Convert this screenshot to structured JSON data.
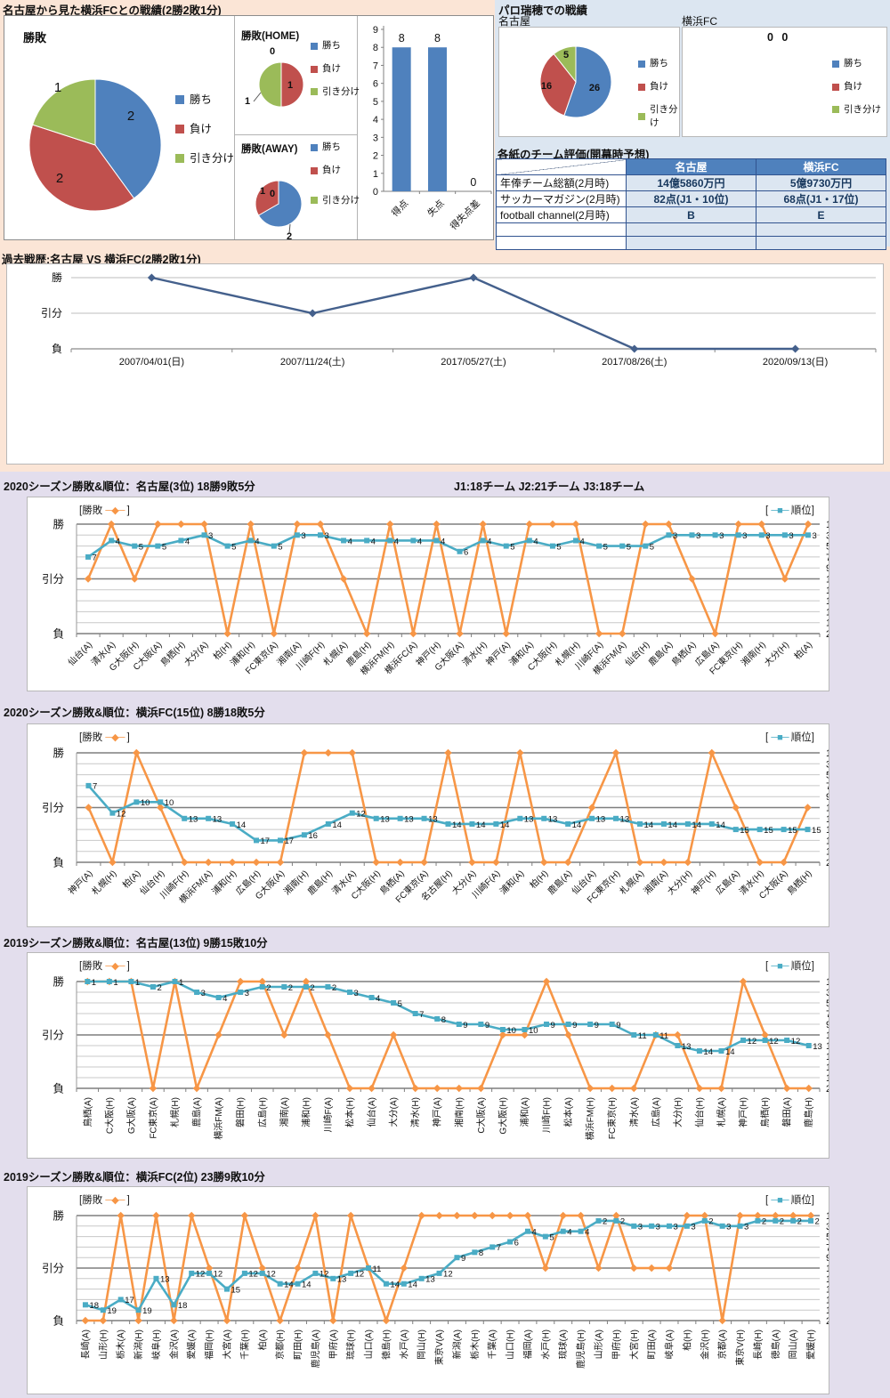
{
  "colors": {
    "win": "#4f81bd",
    "lose": "#c0504d",
    "draw": "#9bbb59",
    "result_line": "#f79646",
    "rank_line": "#4aacc5",
    "history_line": "#44608c",
    "header_blue": "#4f81bd",
    "bg_peach": "#fbe5d6",
    "bg_blue": "#dce6f1",
    "bg_lavender": "#e3deed"
  },
  "ui": {
    "bracket_l": "[",
    "bracket_r": "]",
    "marker_result": "─◆─",
    "marker_rank": "─■─",
    "result_legend": [
      "勝ち",
      "負け",
      "引き分け"
    ],
    "series_result": "勝敗",
    "series_rank": "順位",
    "result_axis": [
      "勝",
      "引分",
      "負"
    ],
    "rank_ticks": [
      1,
      3,
      5,
      7,
      9,
      11,
      13,
      15,
      17,
      19,
      21
    ]
  },
  "h2h": {
    "title": "名古屋から見た横浜FCとの戦績(2勝2敗1分)"
  },
  "stadium": {
    "title": "パロ瑞穂での戦績",
    "teams": [
      "名古屋",
      "横浜FC"
    ]
  },
  "table_ratings": {
    "title": "各紙のチーム評価(開幕時予想)",
    "columns": [
      "名古屋",
      "横浜FC"
    ],
    "rows": [
      {
        "label": "年俸チーム総額(2月時)",
        "values": [
          "14億5860万円",
          "5億9730万円"
        ]
      },
      {
        "label": "サッカーマガジン(2月時)",
        "values": [
          "82点(J1・10位)",
          "68点(J1・17位)"
        ]
      },
      {
        "label": "football channel(2月時)",
        "values": [
          "B",
          "E"
        ]
      }
    ]
  },
  "chart_data": [
    {
      "id": "h2h_pie_main",
      "type": "pie",
      "title": "勝敗",
      "labels": [
        "勝ち",
        "負け",
        "引き分け"
      ],
      "values": [
        2,
        2,
        1
      ]
    },
    {
      "id": "h2h_pie_home",
      "type": "pie",
      "title": "勝敗(HOME)",
      "labels": [
        "勝ち",
        "負け",
        "引き分け"
      ],
      "values": [
        0,
        1,
        1
      ]
    },
    {
      "id": "h2h_pie_away",
      "type": "pie",
      "title": "勝敗(AWAY)",
      "labels": [
        "勝ち",
        "負け",
        "引き分け"
      ],
      "values": [
        2,
        1,
        0
      ]
    },
    {
      "id": "h2h_bar",
      "type": "bar",
      "categories": [
        "得点",
        "失点",
        "得失点差"
      ],
      "values": [
        8,
        8,
        0
      ],
      "ylim": [
        0,
        9
      ],
      "ytick_step": 1
    },
    {
      "id": "mizuho_nagoya",
      "type": "pie",
      "labels": [
        "勝ち",
        "負け",
        "引き分け"
      ],
      "values": [
        26,
        16,
        5
      ]
    },
    {
      "id": "mizuho_yokohama",
      "type": "pie",
      "labels": [
        "勝ち",
        "負け",
        "引き分け"
      ],
      "values": [
        0,
        0,
        0
      ],
      "empty_label": "0 0"
    },
    {
      "id": "history",
      "type": "line",
      "title": "過去戦歴:名古屋 VS 横浜FC(2勝2敗1分)",
      "categories": [
        "2007/04/01(日)",
        "2007/11/24(土)",
        "2017/05/27(土)",
        "2017/08/26(土)",
        "2020/09/13(日)"
      ],
      "values": [
        "勝",
        "引分",
        "勝",
        "負",
        "負"
      ],
      "yticks": [
        "勝",
        "引分",
        "負"
      ]
    },
    {
      "id": "s2020_nagoya",
      "type": "line",
      "title": "2020シーズン勝敗&順位：名古屋(3位) 18勝9敗5分",
      "note": "J1:18チーム  J2:21チーム  J3:18チーム",
      "label_rotation": 45,
      "categories": [
        "仙台(A)",
        "清水(A)",
        "G大阪(H)",
        "C大阪(A)",
        "鳥栖(H)",
        "大分(A)",
        "柏(H)",
        "浦和(H)",
        "FC東京(A)",
        "湘南(A)",
        "川崎F(H)",
        "札幌(A)",
        "鹿島(H)",
        "横浜FM(H)",
        "横浜FC(A)",
        "神戸(H)",
        "G大阪(A)",
        "清水(H)",
        "神戸(A)",
        "浦和(A)",
        "C大阪(H)",
        "札幌(H)",
        "川崎F(A)",
        "横浜FM(A)",
        "仙台(H)",
        "鹿島(A)",
        "鳥栖(A)",
        "広島(A)",
        "FC東京(H)",
        "湘南(H)",
        "大分(H)",
        "柏(A)"
      ],
      "series": [
        {
          "name": "勝敗",
          "values": [
            "引分",
            "勝",
            "引分",
            "勝",
            "勝",
            "勝",
            "負",
            "勝",
            "負",
            "勝",
            "勝",
            "引分",
            "負",
            "勝",
            "負",
            "勝",
            "負",
            "勝",
            "負",
            "勝",
            "勝",
            "勝",
            "負",
            "負",
            "勝",
            "勝",
            "引分",
            "負",
            "勝",
            "勝",
            "引分",
            "勝"
          ]
        },
        {
          "name": "順位",
          "values": [
            7,
            4,
            5,
            5,
            4,
            3,
            5,
            4,
            5,
            3,
            3,
            4,
            4,
            4,
            4,
            4,
            6,
            4,
            5,
            4,
            5,
            4,
            5,
            5,
            5,
            3,
            3,
            3,
            3,
            3,
            3,
            3
          ]
        }
      ],
      "ylim_right": [
        1,
        21
      ]
    },
    {
      "id": "s2020_yokohamafc",
      "type": "line",
      "title": "2020シーズン勝敗&順位：横浜FC(15位) 8勝18敗5分",
      "label_rotation": 45,
      "categories": [
        "神戸(A)",
        "札幌(H)",
        "柏(A)",
        "仙台(H)",
        "川崎F(H)",
        "横浜FM(A)",
        "浦和(H)",
        "広島(H)",
        "G大阪(A)",
        "湘南(H)",
        "鹿島(H)",
        "清水(A)",
        "C大阪(H)",
        "鳥栖(A)",
        "FC東京(A)",
        "名古屋(H)",
        "大分(A)",
        "川崎F(A)",
        "浦和(A)",
        "柏(H)",
        "鹿島(A)",
        "仙台(A)",
        "FC東京(H)",
        "札幌(A)",
        "湘南(A)",
        "大分(H)",
        "神戸(H)",
        "広島(A)",
        "清水(H)",
        "C大阪(A)",
        "鳥栖(H)"
      ],
      "series": [
        {
          "name": "勝敗",
          "values": [
            "引分",
            "負",
            "勝",
            "引分",
            "負",
            "負",
            "負",
            "負",
            "負",
            "勝",
            "勝",
            "勝",
            "負",
            "負",
            "負",
            "勝",
            "負",
            "負",
            "勝",
            "負",
            "負",
            "引分",
            "勝",
            "負",
            "負",
            "負",
            "勝",
            "引分",
            "負",
            "負",
            "引分"
          ]
        },
        {
          "name": "順位",
          "values": [
            7,
            12,
            10,
            10,
            13,
            13,
            14,
            17,
            17,
            16,
            14,
            12,
            13,
            13,
            13,
            14,
            14,
            14,
            13,
            13,
            14,
            13,
            13,
            14,
            14,
            14,
            14,
            15,
            15,
            15,
            15
          ]
        }
      ],
      "ylim_right": [
        1,
        21
      ]
    },
    {
      "id": "s2019_nagoya",
      "type": "line",
      "title": "2019シーズン勝敗&順位：名古屋(13位) 9勝15敗10分",
      "label_rotation": 90,
      "categories": [
        "鳥栖(A)",
        "C大阪(H)",
        "G大阪(A)",
        "FC東京(A)",
        "札幌(H)",
        "鹿島(A)",
        "横浜FM(A)",
        "磐田(H)",
        "広島(H)",
        "湘南(A)",
        "浦和(H)",
        "川崎F(A)",
        "松本(H)",
        "仙台(A)",
        "大分(A)",
        "清水(H)",
        "神戸(A)",
        "湘南(H)",
        "C大阪(A)",
        "G大阪(H)",
        "浦和(A)",
        "川崎F(H)",
        "松本(A)",
        "横浜FM(H)",
        "FC東京(H)",
        "清水(A)",
        "広島(A)",
        "大分(H)",
        "仙台(H)",
        "札幌(A)",
        "神戸(H)",
        "鳥栖(H)",
        "磐田(A)",
        "鹿島(H)"
      ],
      "series": [
        {
          "name": "勝敗",
          "values": [
            "勝",
            "勝",
            "勝",
            "負",
            "勝",
            "負",
            "引分",
            "勝",
            "勝",
            "引分",
            "勝",
            "引分",
            "負",
            "負",
            "引分",
            "負",
            "負",
            "負",
            "負",
            "引分",
            "引分",
            "勝",
            "引分",
            "負",
            "負",
            "負",
            "引分",
            "引分",
            "負",
            "負",
            "勝",
            "引分",
            "負",
            "負"
          ]
        },
        {
          "name": "順位",
          "values": [
            1,
            1,
            1,
            2,
            1,
            3,
            4,
            3,
            2,
            2,
            2,
            2,
            3,
            4,
            5,
            7,
            8,
            9,
            9,
            10,
            10,
            9,
            9,
            9,
            9,
            11,
            11,
            13,
            14,
            14,
            12,
            12,
            12,
            13
          ]
        }
      ],
      "ylim_right": [
        1,
        21
      ]
    },
    {
      "id": "s2019_yokohamafc",
      "type": "line",
      "title": "2019シーズン勝敗&順位：横浜FC(2位) 23勝9敗10分",
      "label_rotation": 90,
      "categories": [
        "長崎(A)",
        "山形(H)",
        "栃木(A)",
        "新潟(H)",
        "岐阜(H)",
        "金沢(A)",
        "愛媛(A)",
        "福岡(H)",
        "大宮(A)",
        "千葉(H)",
        "柏(A)",
        "京都(H)",
        "町田(H)",
        "鹿児島(A)",
        "甲府(A)",
        "琉球(H)",
        "山口(A)",
        "徳島(H)",
        "水戸(A)",
        "岡山(H)",
        "東京V(A)",
        "新潟(A)",
        "栃木(H)",
        "千葉(A)",
        "山口(H)",
        "福岡(A)",
        "水戸(H)",
        "琉球(A)",
        "鹿児島(H)",
        "山形(A)",
        "甲府(H)",
        "大宮(H)",
        "町田(A)",
        "岐阜(A)",
        "柏(H)",
        "金沢(H)",
        "京都(A)",
        "東京V(H)",
        "長崎(H)",
        "徳島(A)",
        "岡山(A)",
        "愛媛(H)"
      ],
      "series": [
        {
          "name": "勝敗",
          "values": [
            "負",
            "負",
            "勝",
            "負",
            "勝",
            "負",
            "勝",
            "引分",
            "負",
            "勝",
            "引分",
            "負",
            "引分",
            "勝",
            "負",
            "勝",
            "引分",
            "負",
            "引分",
            "勝",
            "勝",
            "勝",
            "勝",
            "勝",
            "勝",
            "勝",
            "引分",
            "勝",
            "勝",
            "引分",
            "勝",
            "引分",
            "引分",
            "引分",
            "勝",
            "勝",
            "負",
            "勝",
            "勝",
            "勝",
            "勝",
            "勝"
          ]
        },
        {
          "name": "順位",
          "values": [
            18,
            19,
            17,
            19,
            13,
            18,
            12,
            12,
            15,
            12,
            12,
            14,
            14,
            12,
            13,
            12,
            11,
            14,
            14,
            13,
            12,
            9,
            8,
            7,
            6,
            4,
            5,
            4,
            4,
            2,
            2,
            3,
            3,
            3,
            3,
            2,
            3,
            3,
            2,
            2,
            2,
            2
          ]
        }
      ],
      "ylim_right": [
        1,
        21
      ]
    }
  ]
}
